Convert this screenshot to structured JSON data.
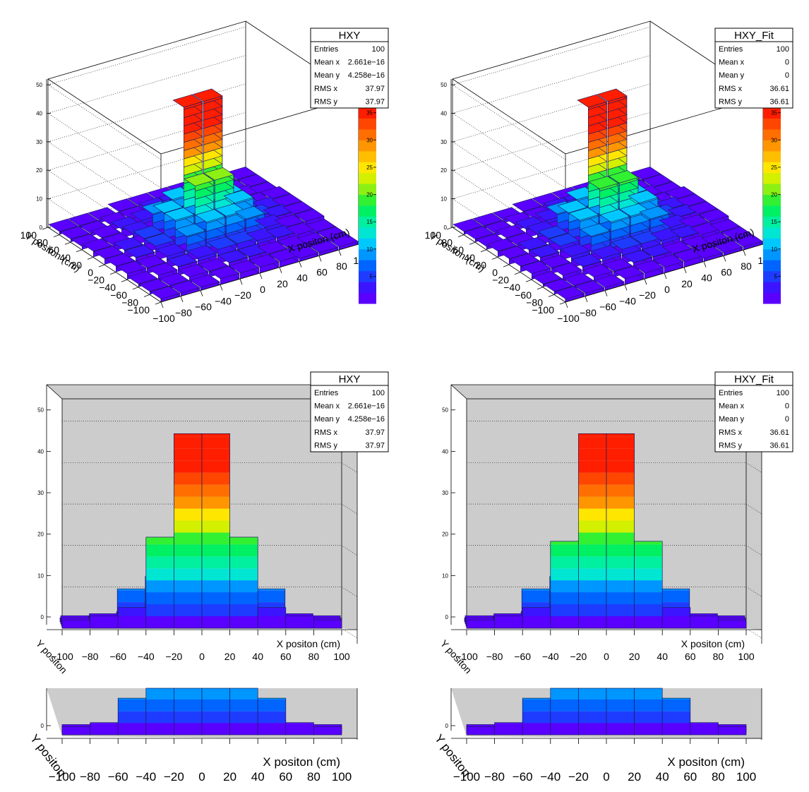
{
  "colors": {
    "palette": [
      "#5a00ff",
      "#3c14ff",
      "#1e3cff",
      "#0064ff",
      "#0096ff",
      "#00c8ff",
      "#00e6d2",
      "#00f0a0",
      "#00f064",
      "#32f032",
      "#8cf014",
      "#d2f000",
      "#ffe600",
      "#ffbe00",
      "#ff9600",
      "#ff6e00",
      "#ff4600",
      "#ff1e00"
    ],
    "frame_bg": "#cccccc",
    "axis": "#000000"
  },
  "panels": [
    {
      "stats": {
        "title": "HXY",
        "rows": [
          {
            "label": "Entries",
            "value": "100"
          },
          {
            "label": "Mean x",
            "value": "2.661e−16"
          },
          {
            "label": "Mean y",
            "value": "4.258e−16"
          },
          {
            "label": "RMS x",
            "value": "37.97"
          },
          {
            "label": "RMS y",
            "value": "37.97"
          }
        ]
      }
    },
    {
      "stats": {
        "title": "HXY_Fit",
        "rows": [
          {
            "label": "Entries",
            "value": "100"
          },
          {
            "label": "Mean x",
            "value": "0"
          },
          {
            "label": "Mean y",
            "value": "0"
          },
          {
            "label": "RMS x",
            "value": "36.61"
          },
          {
            "label": "RMS y",
            "value": "36.61"
          }
        ]
      }
    },
    {
      "stats": {
        "title": "HXY",
        "rows": [
          {
            "label": "Entries",
            "value": "100"
          },
          {
            "label": "Mean x",
            "value": "2.661e−16"
          },
          {
            "label": "Mean y",
            "value": "4.258e−16"
          },
          {
            "label": "RMS x",
            "value": "37.97"
          },
          {
            "label": "RMS y",
            "value": "37.97"
          }
        ]
      }
    },
    {
      "stats": {
        "title": "HXY_Fit",
        "rows": [
          {
            "label": "Entries",
            "value": "100"
          },
          {
            "label": "Mean x",
            "value": "0"
          },
          {
            "label": "Mean y",
            "value": "0"
          },
          {
            "label": "RMS x",
            "value": "36.61"
          },
          {
            "label": "RMS y",
            "value": "36.61"
          }
        ]
      }
    }
  ],
  "chart_data": [
    {
      "type": "lego",
      "view": "oblique",
      "xlabel": "X positon (cm)",
      "ylabel": "Y positon (cm)",
      "xlim": [
        -100,
        100
      ],
      "ylim": [
        -100,
        100
      ],
      "zlim": [
        0,
        52
      ],
      "x_ticks": [
        -100,
        -80,
        -60,
        -40,
        -20,
        0,
        20,
        40,
        60,
        80,
        100
      ],
      "y_ticks": [
        100,
        80,
        60,
        40,
        20,
        0,
        -20,
        -40,
        -60,
        -80,
        -100
      ],
      "z_ticks": [
        0,
        10,
        20,
        30,
        40,
        50
      ],
      "colorbar": {
        "range": [
          0,
          36
        ],
        "ticks": [
          5,
          10,
          15,
          20,
          25,
          30,
          35
        ]
      },
      "grid": true,
      "legend": "top-right stats box",
      "bins_x": [
        -90,
        -70,
        -50,
        -30,
        -10,
        10,
        30,
        50,
        70,
        90
      ],
      "bins_y": [
        -90,
        -70,
        -50,
        -30,
        -10,
        10,
        30,
        50,
        70,
        90
      ],
      "z": [
        [
          1,
          1,
          1,
          2,
          2,
          2,
          2,
          1,
          1,
          1
        ],
        [
          1,
          1,
          2,
          2,
          3,
          3,
          2,
          2,
          1,
          1
        ],
        [
          1,
          2,
          3,
          4,
          5,
          5,
          4,
          3,
          2,
          1
        ],
        [
          2,
          2,
          4,
          9,
          12,
          12,
          9,
          4,
          2,
          2
        ],
        [
          2,
          3,
          5,
          12,
          22,
          22,
          12,
          5,
          3,
          2
        ],
        [
          2,
          3,
          5,
          12,
          47,
          47,
          12,
          5,
          3,
          2
        ],
        [
          2,
          2,
          4,
          9,
          12,
          12,
          9,
          4,
          2,
          2
        ],
        [
          1,
          2,
          3,
          4,
          5,
          5,
          4,
          3,
          2,
          1
        ],
        [
          1,
          1,
          2,
          2,
          3,
          3,
          2,
          2,
          1,
          1
        ],
        [
          1,
          1,
          1,
          2,
          2,
          2,
          2,
          1,
          1,
          1
        ]
      ]
    },
    {
      "type": "lego",
      "view": "oblique",
      "xlabel": "X positon (cm)",
      "ylabel": "Y positon (cm)",
      "xlim": [
        -100,
        100
      ],
      "ylim": [
        -100,
        100
      ],
      "zlim": [
        0,
        52
      ],
      "x_ticks": [
        -100,
        -80,
        -60,
        -40,
        -20,
        0,
        20,
        40,
        60,
        80,
        100
      ],
      "y_ticks": [
        100,
        80,
        60,
        40,
        20,
        0,
        -20,
        -40,
        -60,
        -80,
        -100
      ],
      "z_ticks": [
        0,
        10,
        20,
        30,
        40,
        50
      ],
      "colorbar": {
        "range": [
          0,
          36
        ],
        "ticks": [
          5,
          10,
          15,
          20,
          25,
          30,
          35
        ]
      },
      "grid": true,
      "legend": "top-right stats box",
      "bins_x": [
        -90,
        -70,
        -50,
        -30,
        -10,
        10,
        30,
        50,
        70,
        90
      ],
      "bins_y": [
        -90,
        -70,
        -50,
        -30,
        -10,
        10,
        30,
        50,
        70,
        90
      ],
      "z": [
        [
          1,
          1,
          1,
          2,
          2,
          2,
          2,
          1,
          1,
          1
        ],
        [
          1,
          1,
          2,
          2,
          3,
          3,
          2,
          2,
          1,
          1
        ],
        [
          1,
          2,
          3,
          4,
          5,
          5,
          4,
          3,
          2,
          1
        ],
        [
          2,
          2,
          4,
          9,
          12,
          12,
          9,
          4,
          2,
          2
        ],
        [
          2,
          3,
          5,
          12,
          21,
          21,
          12,
          5,
          3,
          2
        ],
        [
          2,
          3,
          5,
          12,
          47,
          47,
          12,
          5,
          3,
          2
        ],
        [
          2,
          2,
          4,
          9,
          12,
          12,
          9,
          4,
          2,
          2
        ],
        [
          1,
          2,
          3,
          4,
          5,
          5,
          4,
          3,
          2,
          1
        ],
        [
          1,
          1,
          2,
          2,
          3,
          3,
          2,
          2,
          1,
          1
        ],
        [
          1,
          1,
          1,
          2,
          2,
          2,
          2,
          1,
          1,
          1
        ]
      ]
    },
    {
      "type": "lego",
      "view": "front",
      "xlabel": "X positon (cm)",
      "ylabel": "Y positon",
      "xlim": [
        -100,
        100
      ],
      "zlim": [
        0,
        52
      ],
      "x_ticks": [
        -100,
        -80,
        -60,
        -40,
        -20,
        0,
        20,
        40,
        60,
        80,
        100
      ],
      "z_ticks": [
        0,
        10,
        20,
        30,
        40,
        50
      ],
      "grid": true,
      "legend": "top-right stats box",
      "bins_x": [
        -90,
        -70,
        -50,
        -30,
        -10,
        10,
        30,
        50,
        70,
        90
      ],
      "profile_max": [
        2,
        4,
        9,
        12,
        22,
        47,
        47,
        22,
        12,
        9
      ],
      "profile_layers": [
        [
          1,
          1,
          2,
          2,
          2,
          2,
          2,
          2,
          1,
          1
        ],
        [
          2,
          2,
          3,
          4,
          5,
          5,
          4,
          3,
          2,
          2
        ],
        [
          2,
          3,
          9,
          12,
          12,
          12,
          12,
          9,
          3,
          2
        ],
        [
          2,
          3,
          5,
          22,
          47,
          47,
          22,
          5,
          3,
          2
        ]
      ]
    },
    {
      "type": "lego",
      "view": "front",
      "xlabel": "X positon (cm)",
      "ylabel": "Y positon",
      "xlim": [
        -100,
        100
      ],
      "zlim": [
        0,
        52
      ],
      "x_ticks": [
        -100,
        -80,
        -60,
        -40,
        -20,
        0,
        20,
        40,
        60,
        80,
        100
      ],
      "z_ticks": [
        0,
        10,
        20,
        30,
        40,
        50
      ],
      "grid": true,
      "legend": "top-right stats box",
      "bins_x": [
        -90,
        -70,
        -50,
        -30,
        -10,
        10,
        30,
        50,
        70,
        90
      ],
      "profile_layers": [
        [
          1,
          1,
          2,
          2,
          2,
          2,
          2,
          2,
          1,
          1
        ],
        [
          2,
          2,
          3,
          4,
          5,
          5,
          4,
          3,
          2,
          2
        ],
        [
          2,
          3,
          9,
          12,
          12,
          12,
          12,
          9,
          3,
          2
        ],
        [
          2,
          3,
          5,
          21,
          47,
          47,
          21,
          5,
          3,
          2
        ]
      ]
    }
  ],
  "strip": {
    "xlabel": "X positon (cm)",
    "ylabel": "Y positon",
    "x_ticks": [
      -100,
      -80,
      -60,
      -40,
      -20,
      0,
      20,
      40,
      60,
      80,
      100
    ],
    "z_ticks": [
      0
    ]
  }
}
